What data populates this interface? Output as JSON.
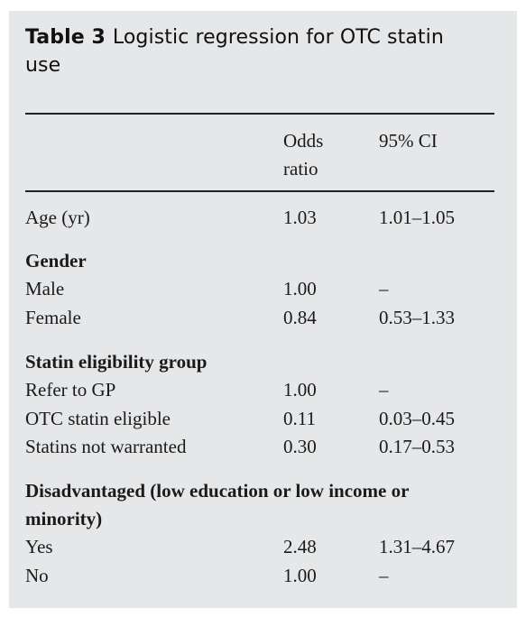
{
  "table": {
    "label": "Table 3",
    "caption": "Logistic regression for OTC statin use",
    "headers": {
      "odds_ratio": "Odds ratio",
      "ci": "95% CI"
    },
    "age": {
      "label": "Age (yr)",
      "or": "1.03",
      "ci": "1.01–1.05"
    },
    "gender": {
      "heading": "Gender",
      "rows": [
        {
          "label": "Male",
          "or": "1.00",
          "ci": "–"
        },
        {
          "label": "Female",
          "or": "0.84",
          "ci": "0.53–1.33"
        }
      ]
    },
    "eligibility": {
      "heading": "Statin eligibility group",
      "rows": [
        {
          "label": "Refer to GP",
          "or": "1.00",
          "ci": "–"
        },
        {
          "label": "OTC statin eligible",
          "or": "0.11",
          "ci": "0.03–0.45"
        },
        {
          "label": "Statins not warranted",
          "or": "0.30",
          "ci": "0.17–0.53"
        }
      ]
    },
    "disadvantaged": {
      "heading": "Disadvantaged (low education or low income or minority)",
      "rows": [
        {
          "label": "Yes",
          "or": "2.48",
          "ci": "1.31–4.67"
        },
        {
          "label": "No",
          "or": "1.00",
          "ci": "–"
        }
      ]
    }
  }
}
